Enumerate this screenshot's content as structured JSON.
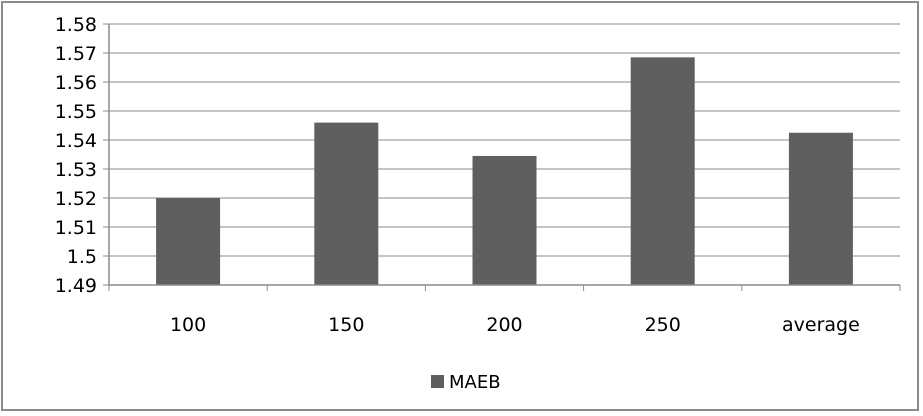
{
  "chart_data": {
    "type": "bar",
    "categories": [
      "100",
      "150",
      "200",
      "250",
      "average"
    ],
    "series": [
      {
        "name": "MAEB",
        "values": [
          1.52,
          1.546,
          1.5345,
          1.5685,
          1.5425
        ]
      }
    ],
    "ylim": [
      1.49,
      1.58
    ],
    "yticks": [
      "1.49",
      "1.5",
      "1.51",
      "1.52",
      "1.53",
      "1.54",
      "1.55",
      "1.56",
      "1.57",
      "1.58"
    ],
    "grid": true,
    "legend_position": "bottom",
    "bar_color": "#5f5f5f"
  }
}
